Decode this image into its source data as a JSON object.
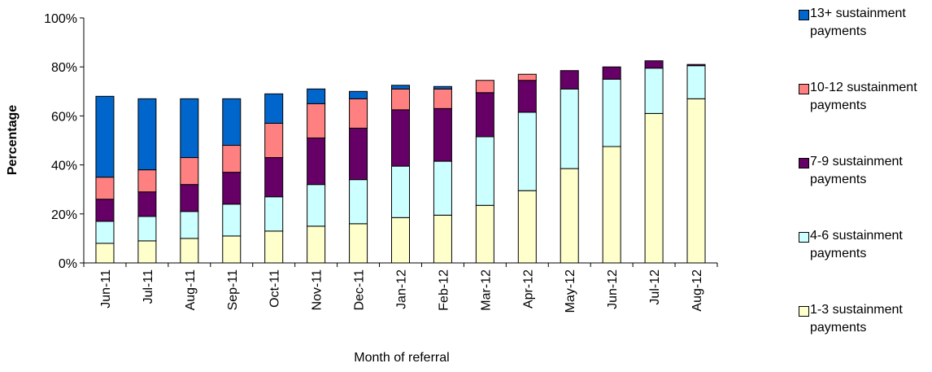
{
  "chart_data": {
    "type": "stacked_bar",
    "x_label": "Month of referral",
    "y_label": "Percentage",
    "categories": [
      "Jun-11",
      "Jul-11",
      "Aug-11",
      "Sep-11",
      "Oct-11",
      "Nov-11",
      "Dec-11",
      "Jan-12",
      "Feb-12",
      "Mar-12",
      "Apr-12",
      "May-12",
      "Jun-12",
      "Jul-12",
      "Aug-12"
    ],
    "series": [
      {
        "name": "1-3 sustainment payments",
        "color": "#ffffcc",
        "values": [
          8,
          9,
          10,
          11,
          13,
          15,
          16,
          18.5,
          19.5,
          23.5,
          29.5,
          38.5,
          47.5,
          61,
          67
        ]
      },
      {
        "name": "4-6 sustainment payments",
        "color": "#ccffff",
        "values": [
          9,
          10,
          11,
          13,
          14,
          17,
          18,
          21,
          22,
          28,
          32,
          32.5,
          27.5,
          18.5,
          13.5
        ]
      },
      {
        "name": "7-9 sustainment payments",
        "color": "#660066",
        "values": [
          9,
          10,
          11,
          13,
          16,
          19,
          21,
          23,
          21.5,
          18,
          13,
          7.5,
          5,
          3,
          0.5
        ]
      },
      {
        "name": "10-12 sustainment payments",
        "color": "#ff8080",
        "values": [
          9,
          9,
          11,
          11,
          14,
          14,
          12,
          8.5,
          8,
          5,
          2.5,
          0,
          0,
          0,
          0
        ]
      },
      {
        "name": "13+ sustainment payments",
        "color": "#0066cc",
        "values": [
          33,
          29,
          24,
          19,
          12,
          6,
          3,
          1.5,
          1,
          0,
          0,
          0,
          0,
          0,
          0
        ]
      }
    ],
    "ylim": [
      0,
      100
    ],
    "yticks": [
      {
        "value": 0,
        "label": "0%"
      },
      {
        "value": 20,
        "label": "20%"
      },
      {
        "value": 40,
        "label": "40%"
      },
      {
        "value": 60,
        "label": "60%"
      },
      {
        "value": 80,
        "label": "80%"
      },
      {
        "value": 100,
        "label": "100%"
      }
    ],
    "grid": false
  }
}
